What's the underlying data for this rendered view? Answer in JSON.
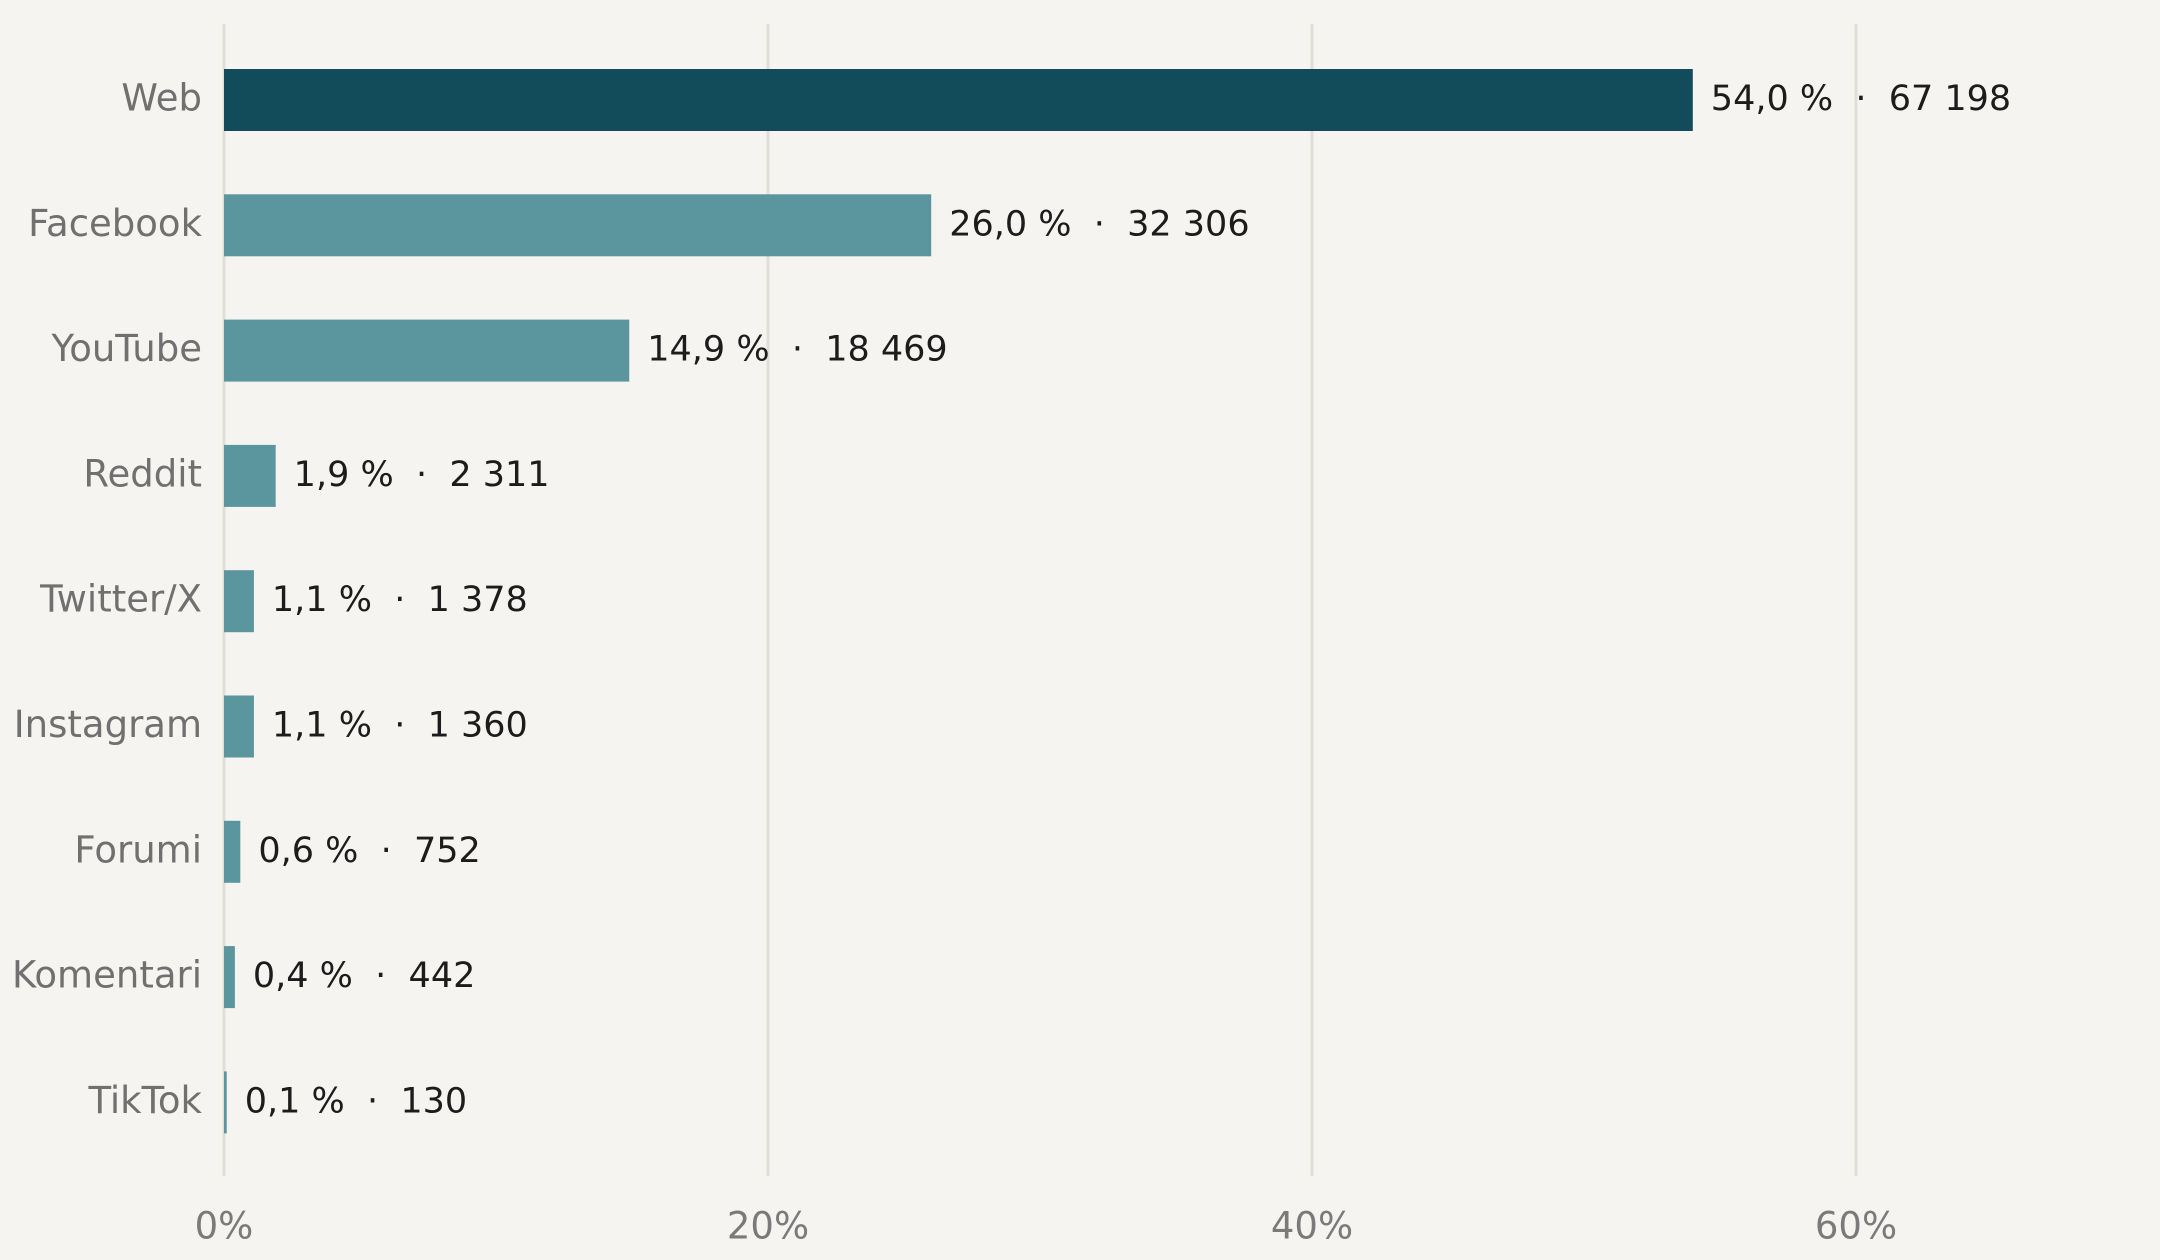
{
  "chart_data": {
    "type": "bar",
    "orientation": "horizontal",
    "categories": [
      "Web",
      "Facebook",
      "YouTube",
      "Reddit",
      "Twitter/X",
      "Instagram",
      "Forumi",
      "Komentari",
      "TikTok"
    ],
    "values": [
      54.0,
      26.0,
      14.9,
      1.9,
      1.1,
      1.1,
      0.6,
      0.4,
      0.1
    ],
    "counts": [
      67198,
      32306,
      18469,
      2311,
      1378,
      1360,
      752,
      442,
      130
    ],
    "value_labels": [
      "54,0 %  ·  67 198",
      "26,0 %  ·  32 306",
      "14,9 %  ·  18 469",
      "1,9 %  ·  2 311",
      "1,1 %  ·  1 378",
      "1,1 %  ·  1 360",
      "0,6 %  ·  752",
      "0,4 %  ·  442",
      "0,1 %  ·  130"
    ],
    "xlim": [
      0,
      71
    ],
    "xticks": [
      0,
      20,
      40,
      60
    ],
    "xtick_labels": [
      "0%",
      "20%",
      "40%",
      "60%"
    ],
    "grid": "vertical",
    "legend": "none",
    "title": "",
    "xlabel": "",
    "ylabel": "",
    "colors": {
      "highlight": "#124c5b",
      "bar": "#5b959e",
      "grid": "#e0e0d6",
      "background": "#f5f4f1",
      "category_text": "#707070",
      "value_text": "#1c1c1c"
    }
  }
}
